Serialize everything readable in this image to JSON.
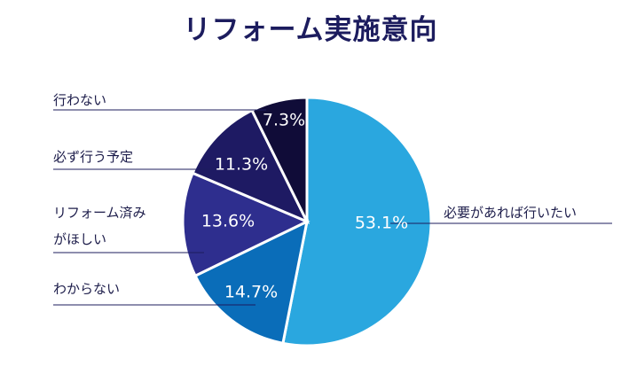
{
  "chart_data": {
    "type": "pie",
    "title": "リフォーム実施意向",
    "slices": [
      {
        "label": "必要があれば行いたい",
        "value": 53.1,
        "text": "53.1%",
        "color": "#2aa7df"
      },
      {
        "label": "わからない",
        "value": 14.7,
        "text": "14.7%",
        "color": "#0a6db9"
      },
      {
        "label": "リフォーム済み\nがほしい",
        "value": 13.6,
        "text": "13.6%",
        "color": "#2e2e8e"
      },
      {
        "label": "必ず行う予定",
        "value": 11.3,
        "text": "11.3%",
        "color": "#1e1a63"
      },
      {
        "label": "行わない",
        "value": 7.3,
        "text": "7.3%",
        "color": "#100c38"
      }
    ]
  }
}
